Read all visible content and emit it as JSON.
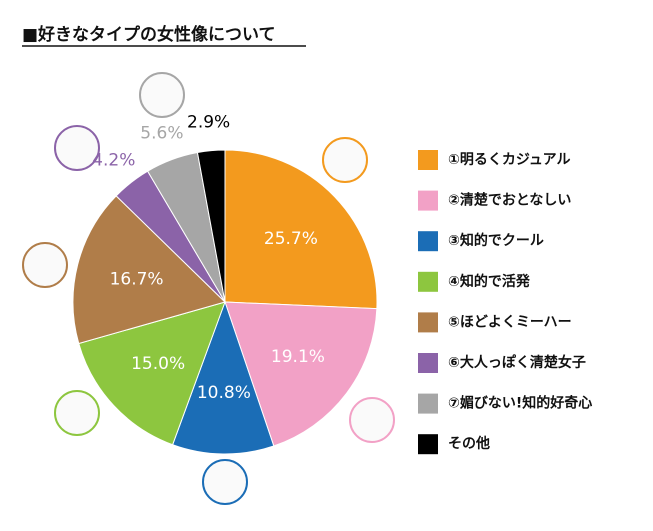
{
  "chart_data": {
    "type": "pie",
    "title": "■好きなタイプの女性像について",
    "categories": [
      "①明るくカジュアル",
      "②清楚でおとなしい",
      "③知的でクール",
      "④知的で活発",
      "⑤ほどよくミーハー",
      "⑥大人っぽく清楚女子",
      "⑦媚びない!知的好奇心",
      "その他"
    ],
    "values": [
      25.7,
      19.1,
      10.8,
      15.0,
      16.7,
      4.2,
      5.6,
      2.9
    ],
    "value_labels": [
      "25.7%",
      "19.1%",
      "10.8%",
      "15.0%",
      "16.7%",
      "4.2%",
      "5.6%",
      "2.9%"
    ],
    "colors": [
      "#f39a1e",
      "#f2a1c6",
      "#1b6db6",
      "#8dc63f",
      "#b07d49",
      "#8b63a8",
      "#a6a6a6",
      "#000000"
    ]
  }
}
